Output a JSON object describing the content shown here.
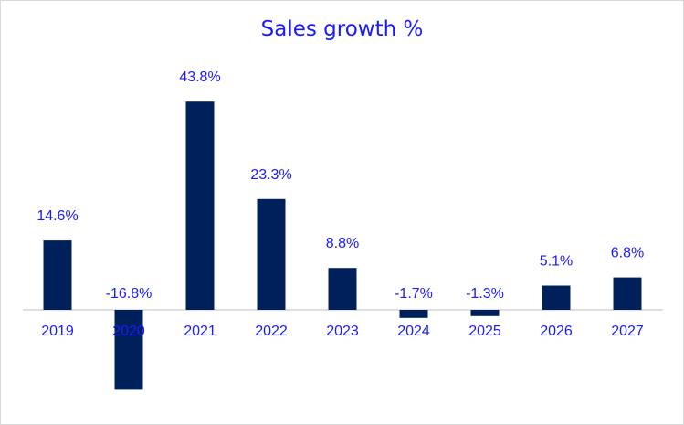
{
  "chart_data": {
    "type": "bar",
    "title": "Sales growth %",
    "categories": [
      "2019",
      "2020",
      "2021",
      "2022",
      "2023",
      "2024",
      "2025",
      "2026",
      "2027"
    ],
    "values": [
      14.6,
      -16.8,
      43.8,
      23.3,
      8.8,
      -1.7,
      -1.3,
      5.1,
      6.8
    ],
    "data_labels": [
      "14.6%",
      "-16.8%",
      "43.8%",
      "23.3%",
      "8.8%",
      "-1.7%",
      "-1.3%",
      "5.1%",
      "6.8%"
    ],
    "xlabel": "",
    "ylabel": "",
    "ylim": [
      -20,
      45
    ],
    "grid": false,
    "legend": "none",
    "bar_color": "#00205b",
    "text_color": "#1a1aff",
    "axis_color": "#bfbfbf"
  }
}
